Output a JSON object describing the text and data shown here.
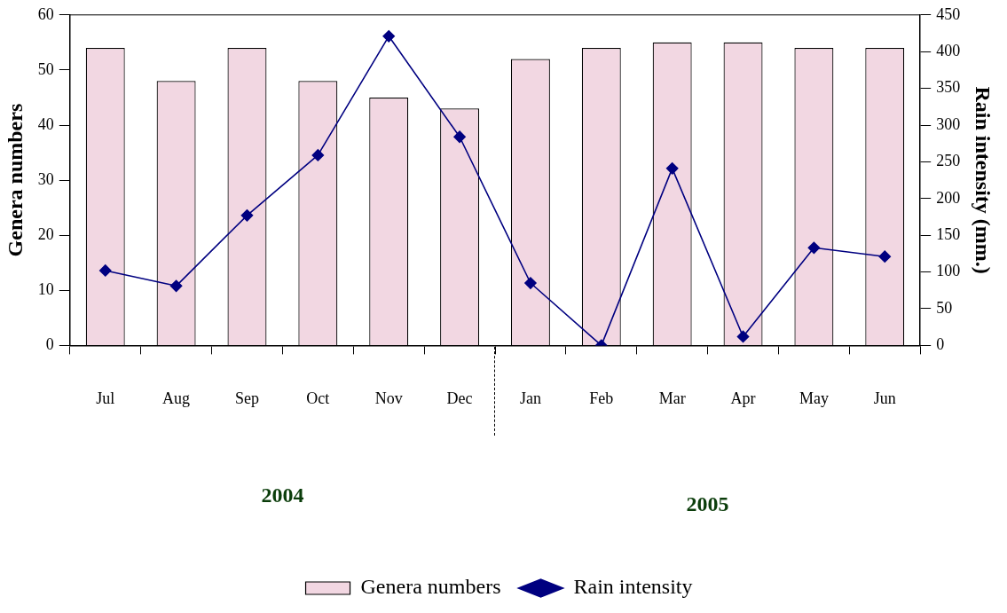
{
  "chart_data": {
    "type": "bar",
    "xlabel": null,
    "ylabel": "Genera numbers",
    "y2label": "Rain intensity (mm.)",
    "categories": [
      "Jul",
      "Aug",
      "Sep",
      "Oct",
      "Nov",
      "Dec",
      "Jan",
      "Feb",
      "Mar",
      "Apr",
      "May",
      "Jun"
    ],
    "series": [
      {
        "name": "Genera numbers",
        "color": "#f2d7e2",
        "values": [
          54,
          48,
          54,
          48,
          45,
          43,
          52,
          54,
          55,
          55,
          54,
          54
        ]
      },
      {
        "name": "Rain intensity",
        "type": "line",
        "axis": "y2",
        "color": "#000080",
        "values": [
          102,
          81,
          177,
          259,
          421,
          284,
          85,
          0,
          241,
          12,
          133,
          121
        ]
      }
    ],
    "ylim": [
      0,
      60
    ],
    "yticks": [
      0,
      10,
      20,
      30,
      40,
      50,
      60
    ],
    "y2lim": [
      0,
      450
    ],
    "y2ticks": [
      0,
      50,
      100,
      150,
      200,
      250,
      300,
      350,
      400,
      450
    ],
    "marker": "diamond",
    "grid": false,
    "legend": "bottom",
    "annotations": [
      "2004",
      "2005"
    ]
  }
}
